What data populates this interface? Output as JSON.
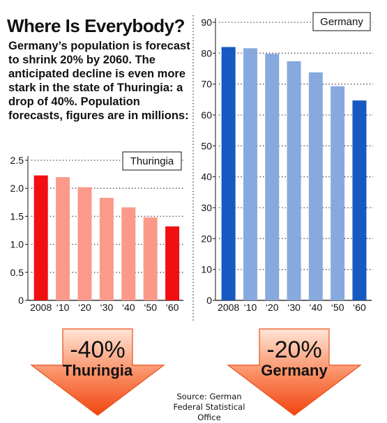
{
  "title": "Where Is Everybody?",
  "intro": "Germany’s population is forecast to shrink 20% by 2060. The anticipated decline is even more stark in the state of Thuringia: a drop of 40%. Population forecasts, figures are in millions:",
  "source_line1": "Source: German",
  "source_line2": "Federal Statistical Office",
  "colors": {
    "thuringia_highlight": "#f20f12",
    "thuringia_bar": "#fb9a8a",
    "germany_highlight": "#1659c2",
    "germany_bar": "#87a9de",
    "arrow_top": "#ffe4d6",
    "arrow_bottom": "#f24410"
  },
  "arrows": [
    {
      "pct": "-40%",
      "name": "Thuringia"
    },
    {
      "pct": "-20%",
      "name": "Germany"
    }
  ],
  "chart_data": [
    {
      "type": "bar",
      "legend": "Thuringia",
      "categories": [
        "2008",
        "‘10",
        "‘20",
        "‘30",
        "‘40",
        "‘50",
        "‘60"
      ],
      "values": [
        2.23,
        2.2,
        2.02,
        1.83,
        1.66,
        1.48,
        1.32
      ],
      "highlight": [
        "2008",
        "‘60"
      ],
      "ylim": [
        0,
        2.5
      ],
      "yticks": [
        "0",
        "0.5",
        "1.0",
        "1.5",
        "2.0",
        "2.5"
      ],
      "ytick_values": [
        0,
        0.5,
        1.0,
        1.5,
        2.0,
        2.5
      ],
      "grid": true
    },
    {
      "type": "bar",
      "legend": "Germany",
      "categories": [
        "2008",
        "‘10",
        "‘20",
        "‘30",
        "‘40",
        "‘50",
        "‘60"
      ],
      "values": [
        82.0,
        81.6,
        79.8,
        77.4,
        73.8,
        69.3,
        64.7
      ],
      "highlight": [
        "2008",
        "‘60"
      ],
      "ylim": [
        0,
        90
      ],
      "yticks": [
        "0",
        "10",
        "20",
        "30",
        "40",
        "50",
        "60",
        "70",
        "80",
        "90"
      ],
      "ytick_values": [
        0,
        10,
        20,
        30,
        40,
        50,
        60,
        70,
        80,
        90
      ],
      "grid": true
    }
  ]
}
